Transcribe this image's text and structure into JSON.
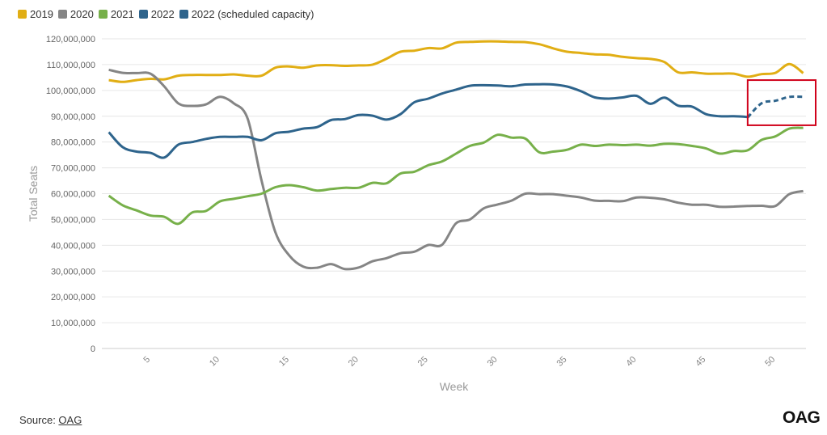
{
  "legend": [
    {
      "label": "2019",
      "color": "#e1ae14"
    },
    {
      "label": "2020",
      "color": "#858585"
    },
    {
      "label": "2021",
      "color": "#77b04a"
    },
    {
      "label": "2022",
      "color": "#2e648c"
    },
    {
      "label": "2022 (scheduled capacity)",
      "color": "#2e648c"
    }
  ],
  "source": {
    "prefix": "Source: ",
    "link": "OAG"
  },
  "logo": "OAG",
  "chart_data": {
    "type": "line",
    "xlabel": "Week",
    "ylabel": "Total Seats",
    "xlim": [
      1.5,
      52.2
    ],
    "ylim": [
      0,
      120000000
    ],
    "y_ticks": [
      "0",
      "10,000,000",
      "20,000,000",
      "30,000,000",
      "40,000,000",
      "50,000,000",
      "60,000,000",
      "70,000,000",
      "80,000,000",
      "90,000,000",
      "100,000,000",
      "110,000,000",
      "120,000,000"
    ],
    "x_ticks": [
      "5",
      "10",
      "15",
      "20",
      "25",
      "30",
      "35",
      "40",
      "45",
      "50"
    ],
    "grid": "horizontal",
    "legend_position": "top-left",
    "highlight": {
      "x_range": [
        48,
        52.2
      ],
      "y_range": [
        86500000,
        104000000
      ],
      "color": "#d0021b"
    },
    "series": [
      {
        "name": "2019",
        "color": "#e1ae14",
        "style": "solid",
        "x": [
          2,
          3,
          4,
          5,
          6,
          7,
          8,
          9,
          10,
          11,
          12,
          13,
          14,
          15,
          16,
          17,
          18,
          19,
          20,
          21,
          22,
          23,
          24,
          25,
          26,
          27,
          28,
          29,
          30,
          31,
          32,
          33,
          34,
          35,
          36,
          37,
          38,
          39,
          40,
          41,
          42,
          43,
          44,
          45,
          46,
          47,
          48,
          49,
          50,
          51,
          52
        ],
        "y": [
          104000000,
          103300000,
          104000000,
          104500000,
          104300000,
          105700000,
          106000000,
          106000000,
          106000000,
          106200000,
          105700000,
          105700000,
          108800000,
          109300000,
          108800000,
          109700000,
          109800000,
          109500000,
          109700000,
          110000000,
          112300000,
          115000000,
          115400000,
          116400000,
          116300000,
          118500000,
          118800000,
          119000000,
          119000000,
          118800000,
          118700000,
          117900000,
          116300000,
          115000000,
          114500000,
          114000000,
          113800000,
          113000000,
          112500000,
          112200000,
          111000000,
          107000000,
          107000000,
          106500000,
          106500000,
          106500000,
          105300000,
          106300000,
          106800000,
          110200000,
          106700000
        ]
      },
      {
        "name": "2020",
        "color": "#858585",
        "style": "solid",
        "x": [
          2,
          3,
          4,
          5,
          6,
          7,
          8,
          9,
          10,
          11,
          12,
          13,
          14,
          15,
          16,
          17,
          18,
          19,
          20,
          21,
          22,
          23,
          24,
          25,
          26,
          27,
          28,
          29,
          30,
          31,
          32,
          33,
          34,
          35,
          36,
          37,
          38,
          39,
          40,
          41,
          42,
          43,
          44,
          45,
          46,
          47,
          48,
          49,
          50,
          51,
          52
        ],
        "y": [
          108000000,
          106800000,
          106700000,
          106500000,
          101500000,
          95000000,
          94000000,
          94600000,
          97500000,
          95000000,
          89000000,
          65000000,
          45000000,
          36000000,
          31700000,
          31300000,
          32700000,
          30800000,
          31400000,
          33800000,
          35000000,
          36900000,
          37500000,
          40100000,
          40200000,
          48500000,
          50000000,
          54300000,
          55800000,
          57300000,
          60000000,
          59800000,
          59800000,
          59200000,
          58500000,
          57300000,
          57200000,
          57100000,
          58500000,
          58400000,
          57800000,
          56500000,
          55700000,
          55700000,
          54900000,
          55000000,
          55200000,
          55300000,
          55200000,
          59800000,
          61000000
        ]
      },
      {
        "name": "2021",
        "color": "#77b04a",
        "style": "solid",
        "x": [
          2,
          3,
          4,
          5,
          6,
          7,
          8,
          9,
          10,
          11,
          12,
          13,
          14,
          15,
          16,
          17,
          18,
          19,
          20,
          21,
          22,
          23,
          24,
          25,
          26,
          27,
          28,
          29,
          30,
          31,
          32,
          33,
          34,
          35,
          36,
          37,
          38,
          39,
          40,
          41,
          42,
          43,
          44,
          45,
          46,
          47,
          48,
          49,
          50,
          51,
          52
        ],
        "y": [
          59200000,
          55500000,
          53500000,
          51500000,
          51000000,
          48300000,
          52700000,
          53300000,
          57000000,
          58000000,
          59000000,
          60000000,
          62500000,
          63300000,
          62500000,
          61200000,
          61800000,
          62300000,
          62300000,
          64200000,
          64000000,
          67800000,
          68500000,
          71000000,
          72500000,
          75500000,
          78500000,
          79800000,
          82800000,
          81700000,
          81300000,
          76000000,
          76300000,
          77000000,
          79000000,
          78500000,
          79000000,
          78800000,
          79000000,
          78600000,
          79300000,
          79200000,
          78500000,
          77500000,
          75500000,
          76500000,
          76800000,
          80800000,
          82200000,
          85200000,
          85500000
        ]
      },
      {
        "name": "2022",
        "color": "#2e648c",
        "style": "solid",
        "x": [
          2,
          3,
          4,
          5,
          6,
          7,
          8,
          9,
          10,
          11,
          12,
          13,
          14,
          15,
          16,
          17,
          18,
          19,
          20,
          21,
          22,
          23,
          24,
          25,
          26,
          27,
          28,
          29,
          30,
          31,
          32,
          33,
          34,
          35,
          36,
          37,
          38,
          39,
          40,
          41,
          42,
          43,
          44,
          45,
          46,
          47,
          48
        ],
        "y": [
          83800000,
          78000000,
          76300000,
          75800000,
          74000000,
          79000000,
          80000000,
          81200000,
          82000000,
          82000000,
          82000000,
          80700000,
          83400000,
          84000000,
          85200000,
          85800000,
          88500000,
          88900000,
          90500000,
          90200000,
          88700000,
          90800000,
          95400000,
          96800000,
          98800000,
          100300000,
          101800000,
          102000000,
          101900000,
          101600000,
          102300000,
          102400000,
          102300000,
          101500000,
          99700000,
          97300000,
          96800000,
          97300000,
          97900000,
          94800000,
          97200000,
          94100000,
          93700000,
          90800000,
          90000000,
          90000000,
          89700000
        ]
      },
      {
        "name": "2022 (scheduled capacity)",
        "color": "#2e648c",
        "style": "dashed",
        "x": [
          48,
          49,
          50,
          51,
          52
        ],
        "y": [
          89500000,
          95000000,
          96000000,
          97500000,
          97500000
        ]
      }
    ]
  }
}
